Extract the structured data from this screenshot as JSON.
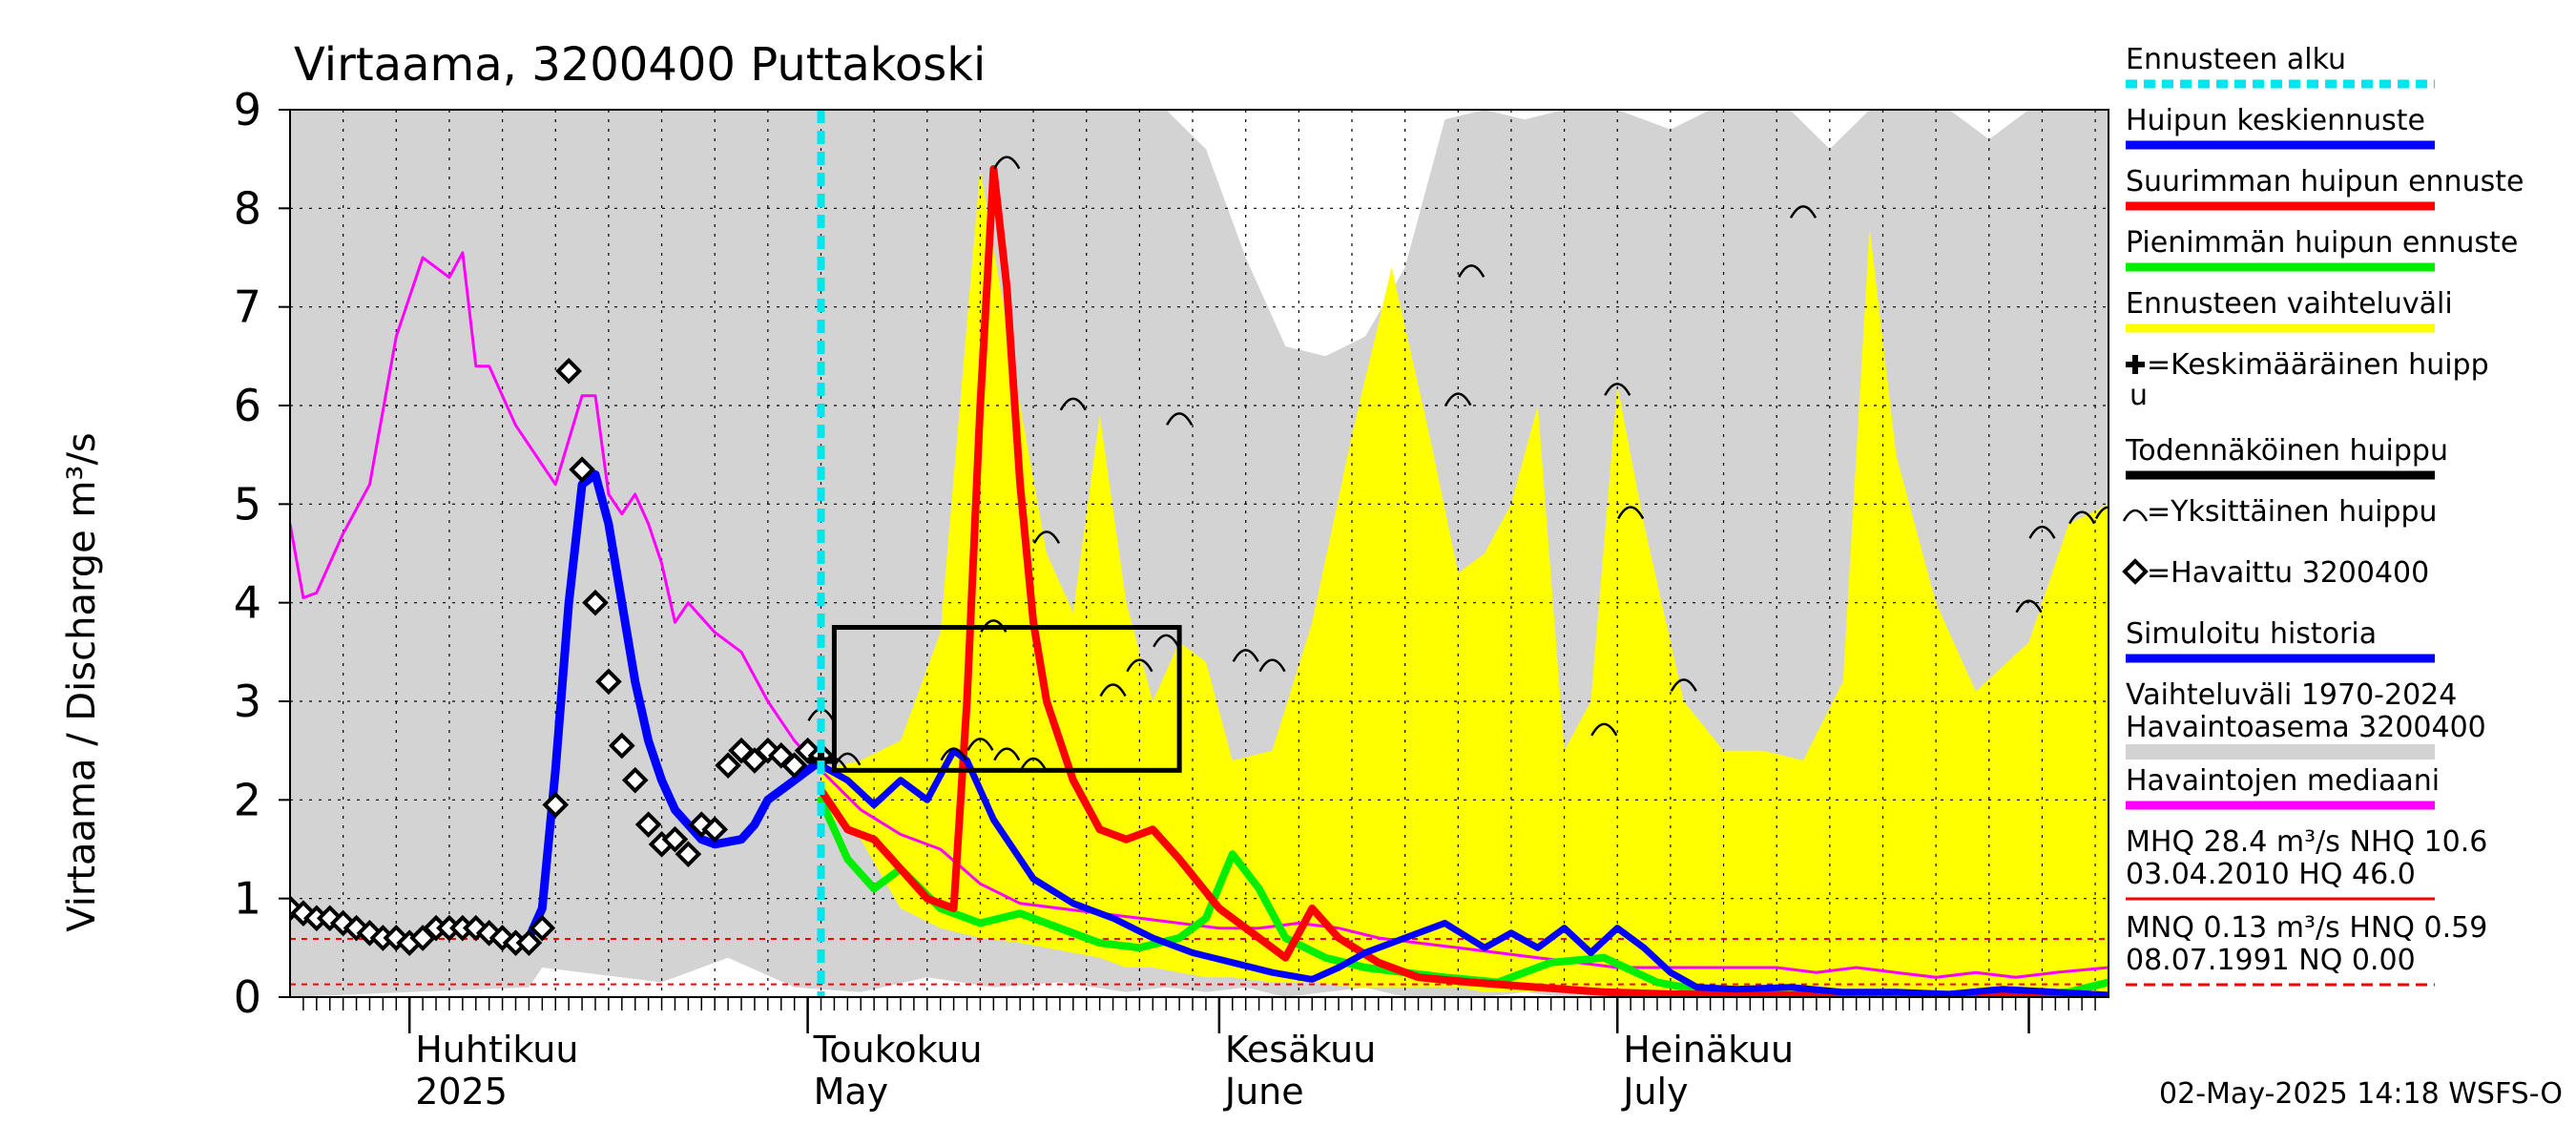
{
  "chart_data": {
    "type": "line",
    "title": "Virtaama, 3200400 Puttakoski",
    "ylabel": "Virtaama / Discharge    m³/s",
    "ylim": [
      0,
      9
    ],
    "yticks": [
      0,
      1,
      2,
      3,
      4,
      5,
      6,
      7,
      8,
      9
    ],
    "xlim": [
      "2025-03-23",
      "2025-08-07"
    ],
    "forecast_start": "2025-05-02",
    "x_labels": [
      {
        "date": "2025-04-01",
        "line1": "Huhtikuu",
        "line2": "2025"
      },
      {
        "date": "2025-05-01",
        "line1": "Toukokuu",
        "line2": "May"
      },
      {
        "date": "2025-06-01",
        "line1": "Kesäkuu",
        "line2": "June"
      },
      {
        "date": "2025-07-01",
        "line1": "Heinäkuu",
        "line2": "July"
      }
    ],
    "footer": "02-May-2025 14:18 WSFS-O",
    "legend": [
      {
        "label": "Ennusteen alku",
        "color": "#00e5ee",
        "style": "dashed"
      },
      {
        "label": "Huipun keskiennuste",
        "color": "#0000ff",
        "style": "solid"
      },
      {
        "label": "Suurimman huipun ennuste",
        "color": "#ff0000",
        "style": "solid"
      },
      {
        "label": "Pienimmän huipun ennuste",
        "color": "#00ee00",
        "style": "solid"
      },
      {
        "label": "Ennusteen vaihteluväli",
        "color": "#ffff00",
        "style": "solid"
      },
      {
        "label": "=Keskimääräinen huipp",
        "label2": "u",
        "color": "#000000",
        "style": "plus"
      },
      {
        "label": "Todennäköinen huippu",
        "color": "#000000",
        "style": "solid"
      },
      {
        "label": "=Yksittäinen huippu",
        "color": "#000000",
        "style": "arc"
      },
      {
        "label": "=Havaittu 3200400",
        "color": "#000000",
        "style": "diamond"
      },
      {
        "label": "Simuloitu historia",
        "color": "#0000ff",
        "style": "solid"
      },
      {
        "label": "Vaihteluväli 1970-2024",
        "label2": " Havaintoasema 3200400",
        "color": "#d3d3d3",
        "style": "solid"
      },
      {
        "label": "Havaintojen mediaani",
        "color": "#ff00ff",
        "style": "solid"
      },
      {
        "label": "MHQ 28.4 m³/s NHQ 10.6",
        "label2": "03.04.2010 HQ 46.0",
        "color": "#ff0000",
        "style": "solid"
      },
      {
        "label": "MNQ 0.13 m³/s HNQ 0.59",
        "label2": "08.07.1991 NQ 0.00",
        "color": "#ff0000",
        "style": "dashed"
      }
    ],
    "reference_lines": {
      "HNQ": 0.59,
      "MNQ": 0.13
    },
    "history_range": {
      "x": [
        "2025-03-23",
        "2025-04-01",
        "2025-04-10",
        "2025-04-11",
        "2025-04-20",
        "2025-04-25",
        "2025-04-30",
        "2025-05-05",
        "2025-05-10",
        "2025-05-15",
        "2025-05-20",
        "2025-05-25",
        "2025-05-28",
        "2025-05-31",
        "2025-06-03",
        "2025-06-06",
        "2025-06-09",
        "2025-06-12",
        "2025-06-15",
        "2025-06-18",
        "2025-06-21",
        "2025-06-24",
        "2025-06-27",
        "2025-07-01",
        "2025-07-05",
        "2025-07-08",
        "2025-07-11",
        "2025-07-14",
        "2025-07-17",
        "2025-07-20",
        "2025-07-23",
        "2025-07-26",
        "2025-07-29",
        "2025-08-01",
        "2025-08-04",
        "2025-08-07"
      ],
      "upper": [
        9,
        9,
        9,
        9,
        9,
        9,
        9,
        9,
        9,
        9,
        9,
        9,
        9,
        8.6,
        7.5,
        6.6,
        6.5,
        6.7,
        7.4,
        8.9,
        9,
        8.9,
        9,
        9,
        8.8,
        9,
        9,
        9,
        8.6,
        9,
        9,
        9,
        8.7,
        9,
        9,
        9
      ],
      "lower": [
        0,
        0.05,
        0.1,
        0.3,
        0.15,
        0.4,
        0.1,
        0.05,
        0.2,
        0.1,
        0.15,
        0.05,
        0.1,
        0.05,
        0.1,
        0,
        0.05,
        0.1,
        0,
        0,
        0,
        0.05,
        0,
        0,
        0,
        0,
        0,
        0,
        0,
        0,
        0,
        0,
        0,
        0,
        0,
        0
      ]
    },
    "forecast_range": {
      "x": [
        "2025-05-02",
        "2025-05-05",
        "2025-05-08",
        "2025-05-11",
        "2025-05-14",
        "2025-05-17",
        "2025-05-19",
        "2025-05-21",
        "2025-05-23",
        "2025-05-25",
        "2025-05-27",
        "2025-05-29",
        "2025-05-31",
        "2025-06-02",
        "2025-06-05",
        "2025-06-08",
        "2025-06-11",
        "2025-06-14",
        "2025-06-17",
        "2025-06-19",
        "2025-06-21",
        "2025-06-23",
        "2025-06-25",
        "2025-06-27",
        "2025-06-29",
        "2025-07-01",
        "2025-07-03",
        "2025-07-06",
        "2025-07-09",
        "2025-07-12",
        "2025-07-15",
        "2025-07-18",
        "2025-07-20",
        "2025-07-22",
        "2025-07-25",
        "2025-07-28",
        "2025-08-01",
        "2025-08-04",
        "2025-08-07"
      ],
      "upper": [
        2.3,
        2.4,
        2.6,
        3.7,
        8.4,
        6.0,
        4.5,
        3.9,
        5.9,
        4.0,
        3.0,
        3.6,
        3.4,
        2.4,
        2.5,
        3.8,
        5.7,
        7.4,
        5.6,
        4.3,
        4.5,
        5.0,
        6.0,
        2.5,
        3.0,
        6.2,
        4.8,
        3.0,
        2.5,
        2.5,
        2.4,
        3.2,
        7.8,
        5.5,
        4.0,
        3.1,
        3.6,
        4.8,
        5.0
      ],
      "lower": [
        1.9,
        1.6,
        0.9,
        0.7,
        0.6,
        0.55,
        0.5,
        0.45,
        0.4,
        0.3,
        0.3,
        0.25,
        0.2,
        0.2,
        0.15,
        0.15,
        0.1,
        0.1,
        0.1,
        0.1,
        0.05,
        0.05,
        0.05,
        0.05,
        0.05,
        0.05,
        0.05,
        0.05,
        0.05,
        0.05,
        0.05,
        0.05,
        0.05,
        0.05,
        0.05,
        0.05,
        0.05,
        0.05,
        0.05
      ]
    },
    "series": [
      {
        "name": "Havaintojen mediaani",
        "color": "#ff00ff",
        "x": [
          "2025-03-23",
          "2025-03-24",
          "2025-03-25",
          "2025-03-27",
          "2025-03-29",
          "2025-03-31",
          "2025-04-02",
          "2025-04-04",
          "2025-04-05",
          "2025-04-06",
          "2025-04-07",
          "2025-04-09",
          "2025-04-11",
          "2025-04-12",
          "2025-04-14",
          "2025-04-15",
          "2025-04-16",
          "2025-04-17",
          "2025-04-18",
          "2025-04-19",
          "2025-04-20",
          "2025-04-21",
          "2025-04-22",
          "2025-04-24",
          "2025-04-26",
          "2025-04-28",
          "2025-04-30",
          "2025-05-02",
          "2025-05-05",
          "2025-05-08",
          "2025-05-11",
          "2025-05-14",
          "2025-05-17",
          "2025-05-20",
          "2025-05-23",
          "2025-05-26",
          "2025-05-29",
          "2025-06-01",
          "2025-06-04",
          "2025-06-07",
          "2025-06-10",
          "2025-06-13",
          "2025-06-16",
          "2025-06-19",
          "2025-06-22",
          "2025-06-25",
          "2025-06-28",
          "2025-07-01",
          "2025-07-04",
          "2025-07-07",
          "2025-07-10",
          "2025-07-13",
          "2025-07-16",
          "2025-07-19",
          "2025-07-22",
          "2025-07-25",
          "2025-07-28",
          "2025-07-31",
          "2025-08-03",
          "2025-08-07"
        ],
        "values": [
          4.8,
          4.05,
          4.1,
          4.7,
          5.2,
          6.7,
          7.5,
          7.3,
          7.55,
          6.4,
          6.4,
          5.8,
          5.4,
          5.2,
          6.1,
          6.1,
          5.1,
          4.9,
          5.1,
          4.8,
          4.4,
          3.8,
          4.0,
          3.7,
          3.5,
          3.0,
          2.6,
          2.3,
          1.9,
          1.65,
          1.5,
          1.15,
          0.95,
          0.9,
          0.85,
          0.8,
          0.75,
          0.7,
          0.7,
          0.75,
          0.7,
          0.6,
          0.55,
          0.5,
          0.45,
          0.4,
          0.35,
          0.3,
          0.3,
          0.3,
          0.3,
          0.3,
          0.25,
          0.3,
          0.25,
          0.2,
          0.25,
          0.2,
          0.25,
          0.3
        ]
      },
      {
        "name": "Simuloitu historia",
        "color": "#0000ff",
        "x": [
          "2025-03-23",
          "2025-03-26",
          "2025-03-29",
          "2025-04-01",
          "2025-04-04",
          "2025-04-07",
          "2025-04-09",
          "2025-04-10",
          "2025-04-11",
          "2025-04-12",
          "2025-04-13",
          "2025-04-14",
          "2025-04-15",
          "2025-04-16",
          "2025-04-17",
          "2025-04-18",
          "2025-04-19",
          "2025-04-20",
          "2025-04-21",
          "2025-04-23",
          "2025-04-24",
          "2025-04-26",
          "2025-04-27",
          "2025-04-28",
          "2025-04-29",
          "2025-04-30",
          "2025-05-01",
          "2025-05-02"
        ],
        "values": [
          0.9,
          0.8,
          0.65,
          0.55,
          0.7,
          0.65,
          0.55,
          0.6,
          0.9,
          2.3,
          4.0,
          5.2,
          5.3,
          4.8,
          4.0,
          3.2,
          2.6,
          2.2,
          1.9,
          1.6,
          1.55,
          1.6,
          1.75,
          2.0,
          2.1,
          2.2,
          2.3,
          2.4
        ]
      },
      {
        "name": "Huipun keskiennuste",
        "color": "#0000ff",
        "x": [
          "2025-05-02",
          "2025-05-04",
          "2025-05-06",
          "2025-05-08",
          "2025-05-10",
          "2025-05-12",
          "2025-05-13",
          "2025-05-15",
          "2025-05-18",
          "2025-05-21",
          "2025-05-24",
          "2025-05-27",
          "2025-05-30",
          "2025-06-02",
          "2025-06-05",
          "2025-06-08",
          "2025-06-10",
          "2025-06-12",
          "2025-06-15",
          "2025-06-18",
          "2025-06-21",
          "2025-06-23",
          "2025-06-25",
          "2025-06-27",
          "2025-06-29",
          "2025-07-01",
          "2025-07-03",
          "2025-07-05",
          "2025-07-07",
          "2025-07-10",
          "2025-07-14",
          "2025-07-18",
          "2025-07-22",
          "2025-07-26",
          "2025-07-30",
          "2025-08-03",
          "2025-08-07"
        ],
        "values": [
          2.35,
          2.2,
          1.95,
          2.2,
          2.0,
          2.5,
          2.4,
          1.8,
          1.2,
          0.95,
          0.8,
          0.6,
          0.45,
          0.35,
          0.25,
          0.18,
          0.3,
          0.45,
          0.6,
          0.75,
          0.5,
          0.65,
          0.5,
          0.7,
          0.45,
          0.7,
          0.5,
          0.25,
          0.1,
          0.08,
          0.1,
          0.05,
          0.05,
          0.03,
          0.08,
          0.05,
          0.02
        ]
      },
      {
        "name": "Suurimman huipun ennuste",
        "color": "#ff0000",
        "x": [
          "2025-05-02",
          "2025-05-04",
          "2025-05-06",
          "2025-05-08",
          "2025-05-10",
          "2025-05-12",
          "2025-05-13",
          "2025-05-14",
          "2025-05-15",
          "2025-05-16",
          "2025-05-17",
          "2025-05-18",
          "2025-05-19",
          "2025-05-21",
          "2025-05-23",
          "2025-05-25",
          "2025-05-27",
          "2025-05-29",
          "2025-06-01",
          "2025-06-04",
          "2025-06-06",
          "2025-06-08",
          "2025-06-10",
          "2025-06-13",
          "2025-06-16",
          "2025-06-20",
          "2025-06-25",
          "2025-06-30",
          "2025-07-05",
          "2025-07-10",
          "2025-07-15",
          "2025-07-20",
          "2025-07-25",
          "2025-07-31",
          "2025-08-07"
        ],
        "values": [
          2.1,
          1.7,
          1.6,
          1.3,
          1.0,
          0.9,
          3.0,
          6.0,
          8.4,
          7.2,
          5.2,
          3.8,
          3.0,
          2.2,
          1.7,
          1.6,
          1.7,
          1.4,
          0.9,
          0.6,
          0.4,
          0.9,
          0.6,
          0.35,
          0.2,
          0.15,
          0.1,
          0.05,
          0.03,
          0.02,
          0.02,
          0.01,
          0.01,
          0.01,
          0.01
        ]
      },
      {
        "name": "Pienimmän huipun ennuste",
        "color": "#00ee00",
        "x": [
          "2025-05-02",
          "2025-05-04",
          "2025-05-06",
          "2025-05-08",
          "2025-05-11",
          "2025-05-14",
          "2025-05-17",
          "2025-05-20",
          "2025-05-23",
          "2025-05-26",
          "2025-05-29",
          "2025-05-31",
          "2025-06-02",
          "2025-06-04",
          "2025-06-06",
          "2025-06-09",
          "2025-06-12",
          "2025-06-15",
          "2025-06-18",
          "2025-06-22",
          "2025-06-26",
          "2025-06-30",
          "2025-07-04",
          "2025-07-08",
          "2025-07-12",
          "2025-07-16",
          "2025-07-20",
          "2025-07-24",
          "2025-07-28",
          "2025-08-01",
          "2025-08-04",
          "2025-08-07"
        ],
        "values": [
          2.0,
          1.4,
          1.1,
          1.3,
          0.9,
          0.75,
          0.85,
          0.7,
          0.55,
          0.5,
          0.6,
          0.8,
          1.45,
          1.1,
          0.6,
          0.4,
          0.3,
          0.25,
          0.2,
          0.15,
          0.35,
          0.4,
          0.15,
          0.05,
          0.02,
          0.02,
          0.02,
          0.01,
          0.02,
          0.02,
          0.05,
          0.15
        ]
      }
    ],
    "observed": {
      "x": [
        "2025-03-23",
        "2025-03-24",
        "2025-03-25",
        "2025-03-26",
        "2025-03-27",
        "2025-03-28",
        "2025-03-29",
        "2025-03-30",
        "2025-03-31",
        "2025-04-01",
        "2025-04-02",
        "2025-04-03",
        "2025-04-04",
        "2025-04-05",
        "2025-04-06",
        "2025-04-07",
        "2025-04-08",
        "2025-04-09",
        "2025-04-10",
        "2025-04-11",
        "2025-04-12",
        "2025-04-13",
        "2025-04-14",
        "2025-04-15",
        "2025-04-16",
        "2025-04-17",
        "2025-04-18",
        "2025-04-19",
        "2025-04-20",
        "2025-04-21",
        "2025-04-22",
        "2025-04-23",
        "2025-04-24",
        "2025-04-25",
        "2025-04-26",
        "2025-04-27",
        "2025-04-28",
        "2025-04-29",
        "2025-04-30",
        "2025-05-01",
        "2025-05-02"
      ],
      "values": [
        0.9,
        0.85,
        0.8,
        0.8,
        0.75,
        0.7,
        0.65,
        0.6,
        0.6,
        0.55,
        0.6,
        0.7,
        0.7,
        0.7,
        0.7,
        0.65,
        0.6,
        0.55,
        0.55,
        0.7,
        1.95,
        6.35,
        5.35,
        4.0,
        3.2,
        2.55,
        2.2,
        1.75,
        1.55,
        1.6,
        1.45,
        1.75,
        1.7,
        2.35,
        2.5,
        2.4,
        2.5,
        2.45,
        2.35,
        2.5,
        2.45
      ]
    },
    "average_peak": {
      "x": "2025-05-02",
      "value": 2.4
    },
    "probable_peak_box": {
      "x0": "2025-05-03",
      "x1": "2025-05-29",
      "y0": 2.3,
      "y1": 3.75
    },
    "single_peaks": [
      {
        "x": "2025-05-02",
        "value": 2.9
      },
      {
        "x": "2025-05-03",
        "value": 2.4
      },
      {
        "x": "2025-05-04",
        "value": 2.45
      },
      {
        "x": "2025-05-12",
        "value": 2.5
      },
      {
        "x": "2025-05-14",
        "value": 2.6
      },
      {
        "x": "2025-05-15",
        "value": 3.8
      },
      {
        "x": "2025-05-16",
        "value": 8.5
      },
      {
        "x": "2025-05-16",
        "value": 2.5
      },
      {
        "x": "2025-05-18",
        "value": 2.4
      },
      {
        "x": "2025-05-19",
        "value": 4.7
      },
      {
        "x": "2025-05-21",
        "value": 6.05
      },
      {
        "x": "2025-05-24",
        "value": 3.15
      },
      {
        "x": "2025-05-26",
        "value": 3.4
      },
      {
        "x": "2025-05-28",
        "value": 3.65
      },
      {
        "x": "2025-05-29",
        "value": 5.9
      },
      {
        "x": "2025-06-03",
        "value": 3.5
      },
      {
        "x": "2025-06-05",
        "value": 3.4
      },
      {
        "x": "2025-06-19",
        "value": 6.1
      },
      {
        "x": "2025-06-20",
        "value": 7.4
      },
      {
        "x": "2025-06-30",
        "value": 2.75
      },
      {
        "x": "2025-07-01",
        "value": 6.2
      },
      {
        "x": "2025-07-02",
        "value": 4.95
      },
      {
        "x": "2025-07-06",
        "value": 3.2
      },
      {
        "x": "2025-07-15",
        "value": 8.0
      },
      {
        "x": "2025-08-01",
        "value": 4.0
      },
      {
        "x": "2025-08-02",
        "value": 4.75
      },
      {
        "x": "2025-08-05",
        "value": 4.9
      },
      {
        "x": "2025-08-07",
        "value": 4.95
      }
    ]
  }
}
